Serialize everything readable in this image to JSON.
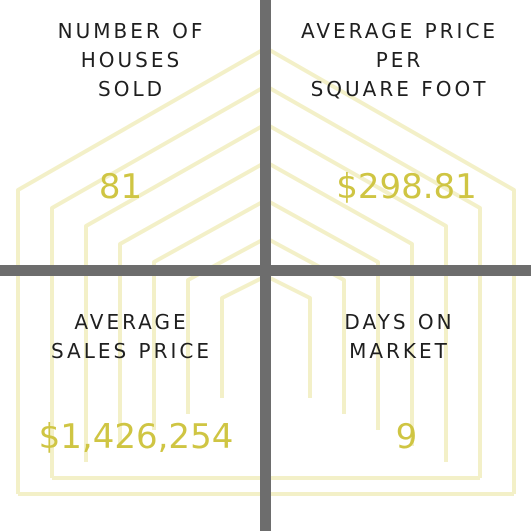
{
  "stats": [
    {
      "label_lines": [
        "NUMBER OF",
        "HOUSES",
        "SOLD"
      ],
      "value": "81"
    },
    {
      "label_lines": [
        "AVERAGE PRICE",
        "PER",
        "SQUARE FOOT"
      ],
      "value": "$298.81"
    },
    {
      "label_lines": [
        "AVERAGE",
        "SALES PRICE"
      ],
      "value": "$1,426,254"
    },
    {
      "label_lines": [
        "DAYS ON",
        "MARKET"
      ],
      "value": "9"
    }
  ],
  "colors": {
    "value_color": "#cfc543",
    "label_color": "#1f1f1f",
    "divider_color": "#6d6d6d",
    "watermark_color": "#f3f0c8"
  },
  "icons": {
    "background": "house-outline-icon"
  }
}
